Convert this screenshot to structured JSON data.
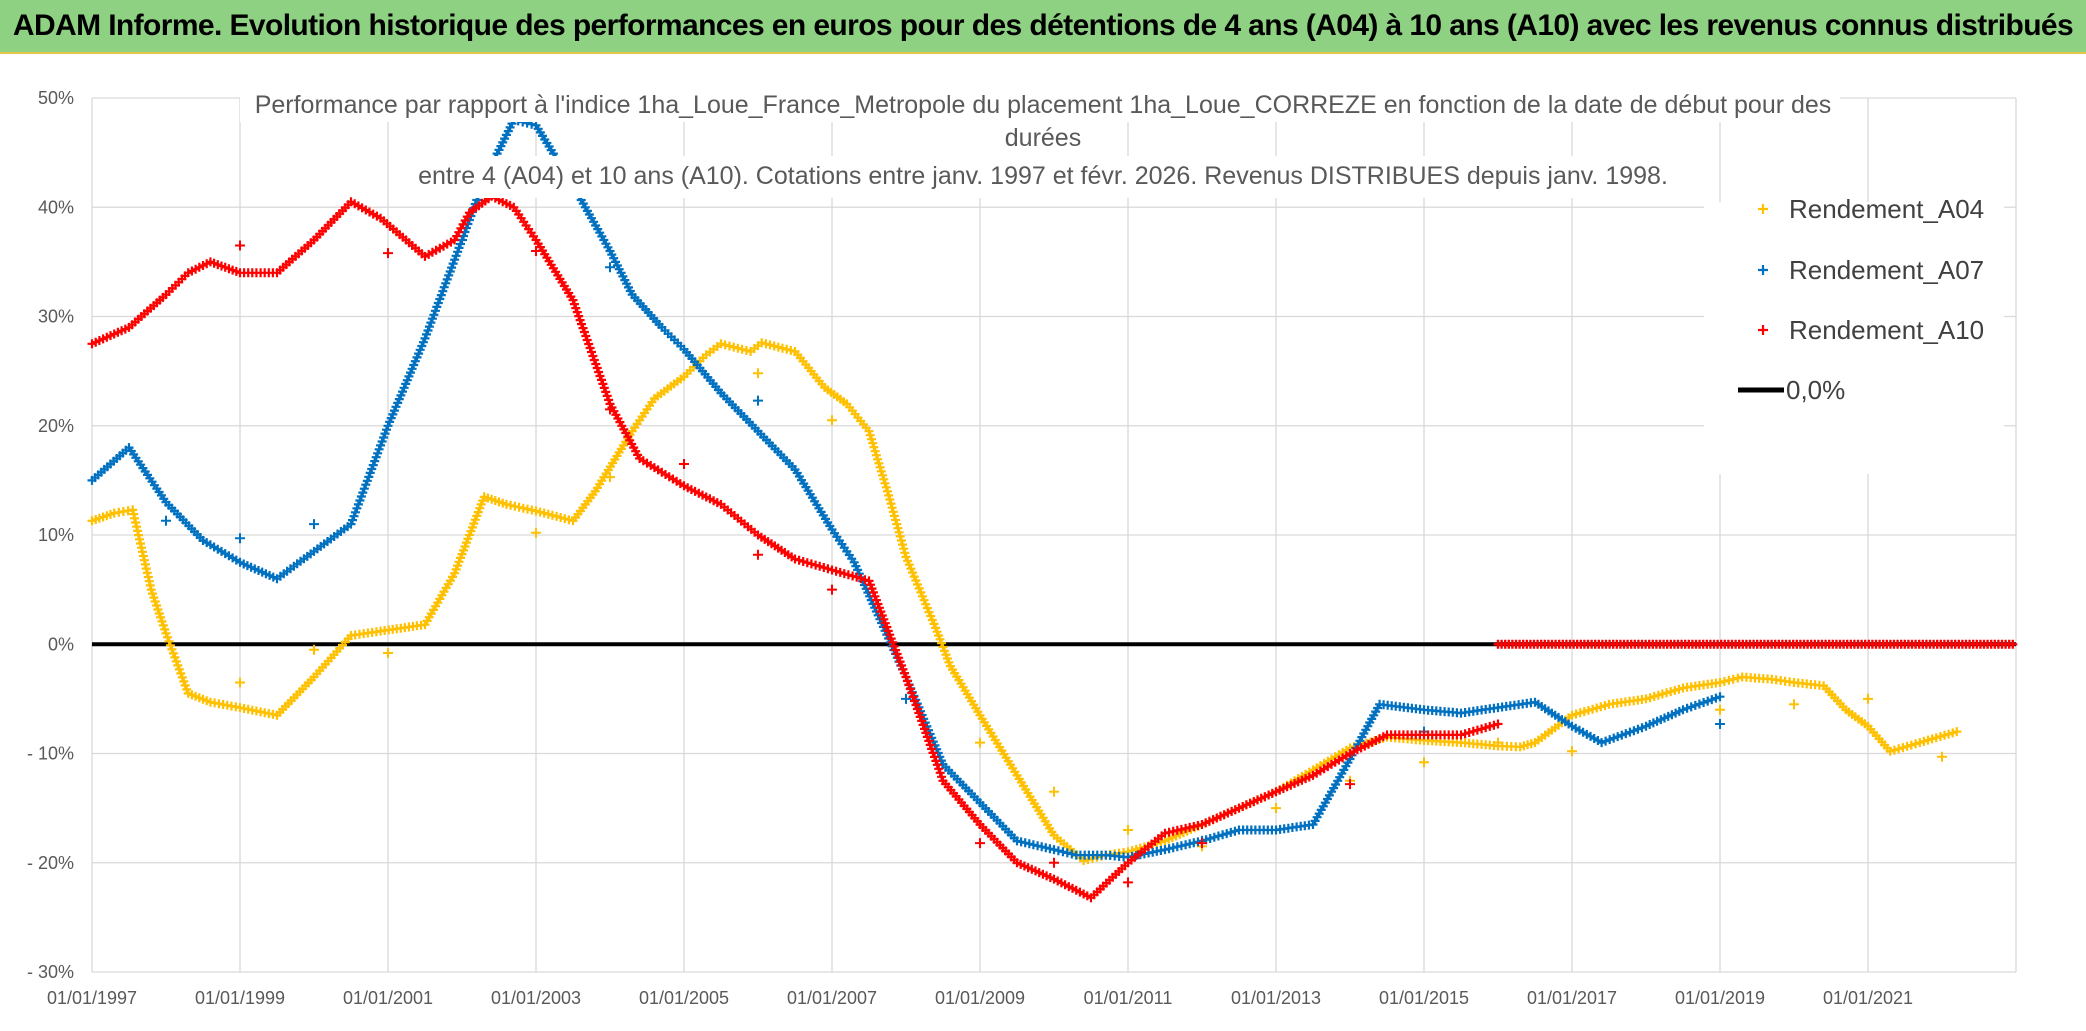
{
  "header": {
    "title": "ADAM Informe. Evolution historique des performances en euros pour des détentions de 4 ans (A04) à 10 ans (A10) avec les revenus connus distribués"
  },
  "chart_data": {
    "type": "scatter",
    "title_lines": [
      "Performance par rapport à l'indice 1ha_Loue_France_Metropole  du placement 1ha_Loue_CORREZE en fonction de la date de début pour des",
      "durées",
      "entre 4 (A04) et 10 ans (A10). Cotations entre janv. 1997 et févr. 2026. Revenus DISTRIBUES depuis janv. 1998."
    ],
    "x_range": [
      1997.0,
      2023.0
    ],
    "ylim": [
      -30,
      50
    ],
    "x_tick_labels": [
      "01/01/1997",
      "01/01/1999",
      "01/01/2001",
      "01/01/2003",
      "01/01/2005",
      "01/01/2007",
      "01/01/2009",
      "01/01/2011",
      "01/01/2013",
      "01/01/2015",
      "01/01/2017",
      "01/01/2019",
      "01/01/2021"
    ],
    "x_tick_values": [
      1997,
      1999,
      2001,
      2003,
      2005,
      2007,
      2009,
      2011,
      2013,
      2015,
      2017,
      2019,
      2021
    ],
    "y_tick_values": [
      50,
      40,
      30,
      20,
      10,
      0,
      -10,
      -20,
      -30
    ],
    "y_tick_labels": [
      "50%",
      "40%",
      "30%",
      "20%",
      "10%",
      "0%",
      "- 10%",
      "- 20%",
      "- 30%"
    ],
    "series": [
      {
        "name": "Rendement_A04",
        "color": "#ffc000",
        "points": [
          [
            1997.0,
            11.3
          ],
          [
            1997.3,
            12.0
          ],
          [
            1997.55,
            12.3
          ],
          [
            1997.8,
            5.0
          ],
          [
            1998.0,
            1.0
          ],
          [
            1998.3,
            -4.5
          ],
          [
            1998.6,
            -5.3
          ],
          [
            1999.0,
            -5.8
          ],
          [
            1999.5,
            -6.5
          ],
          [
            2000.0,
            -3.0
          ],
          [
            2000.5,
            0.8
          ],
          [
            2000.9,
            1.2
          ],
          [
            2001.5,
            1.8
          ],
          [
            2001.9,
            6.5
          ],
          [
            2002.3,
            13.5
          ],
          [
            2002.6,
            12.8
          ],
          [
            2003.0,
            12.2
          ],
          [
            2003.5,
            11.3
          ],
          [
            2003.8,
            14.0
          ],
          [
            2004.3,
            19.5
          ],
          [
            2004.6,
            22.5
          ],
          [
            2005.0,
            24.5
          ],
          [
            2005.3,
            26.5
          ],
          [
            2005.5,
            27.5
          ],
          [
            2005.9,
            26.8
          ],
          [
            2006.05,
            27.6
          ],
          [
            2006.5,
            26.8
          ],
          [
            2006.9,
            23.5
          ],
          [
            2007.2,
            22.0
          ],
          [
            2007.5,
            19.5
          ],
          [
            2007.75,
            14.0
          ],
          [
            2008.0,
            8.0
          ],
          [
            2008.4,
            1.5
          ],
          [
            2008.6,
            -2.0
          ],
          [
            2009.0,
            -6.5
          ],
          [
            2009.5,
            -12.0
          ],
          [
            2010.0,
            -17.5
          ],
          [
            2010.4,
            -19.8
          ],
          [
            2010.7,
            -19.3
          ],
          [
            2011.0,
            -19.0
          ],
          [
            2011.5,
            -18.0
          ],
          [
            2012.0,
            -16.5
          ],
          [
            2012.5,
            -15.0
          ],
          [
            2013.0,
            -13.5
          ],
          [
            2013.5,
            -11.5
          ],
          [
            2014.0,
            -9.5
          ],
          [
            2014.5,
            -8.5
          ],
          [
            2015.0,
            -8.8
          ],
          [
            2015.5,
            -9.0
          ],
          [
            2016.0,
            -9.3
          ],
          [
            2016.3,
            -9.4
          ],
          [
            2016.5,
            -9.0
          ],
          [
            2017.0,
            -6.5
          ],
          [
            2017.5,
            -5.5
          ],
          [
            2018.0,
            -5.0
          ],
          [
            2018.5,
            -4.0
          ],
          [
            2019.0,
            -3.5
          ],
          [
            2019.3,
            -3.0
          ],
          [
            2019.7,
            -3.2
          ],
          [
            2020.0,
            -3.5
          ],
          [
            2020.4,
            -3.8
          ],
          [
            2020.7,
            -6.0
          ],
          [
            2021.0,
            -7.5
          ],
          [
            2021.3,
            -9.8
          ],
          [
            2021.7,
            -9.0
          ],
          [
            2022.2,
            -8.0
          ]
        ],
        "outliers": [
          [
            1999.0,
            -3.5
          ],
          [
            2000.0,
            -0.5
          ],
          [
            2001.0,
            -0.8
          ],
          [
            2003.0,
            10.2
          ],
          [
            2004.0,
            15.3
          ],
          [
            2006.0,
            24.8
          ],
          [
            2007.0,
            20.5
          ],
          [
            2009.0,
            -9.0
          ],
          [
            2010.0,
            -13.5
          ],
          [
            2011.0,
            -17.0
          ],
          [
            2012.0,
            -18.5
          ],
          [
            2013.0,
            -15.0
          ],
          [
            2014.0,
            -12.5
          ],
          [
            2015.0,
            -10.8
          ],
          [
            2016.0,
            -9.0
          ],
          [
            2017.0,
            -9.8
          ],
          [
            2019.0,
            -6.0
          ],
          [
            2020.0,
            -5.5
          ],
          [
            2021.0,
            -5.0
          ],
          [
            2022.0,
            -10.3
          ]
        ]
      },
      {
        "name": "Rendement_A07",
        "color": "#0070c0",
        "points": [
          [
            1997.0,
            15.0
          ],
          [
            1997.5,
            18.0
          ],
          [
            1998.0,
            13.0
          ],
          [
            1998.5,
            9.5
          ],
          [
            1999.0,
            7.5
          ],
          [
            1999.5,
            6.0
          ],
          [
            2000.0,
            8.5
          ],
          [
            2000.5,
            11.0
          ],
          [
            2001.0,
            20.0
          ],
          [
            2001.5,
            28.0
          ],
          [
            2002.0,
            37.0
          ],
          [
            2002.3,
            42.5
          ],
          [
            2002.7,
            48.0
          ],
          [
            2003.0,
            47.5
          ],
          [
            2003.5,
            42.0
          ],
          [
            2004.0,
            36.0
          ],
          [
            2004.3,
            32.0
          ],
          [
            2004.7,
            29.0
          ],
          [
            2005.0,
            27.0
          ],
          [
            2005.5,
            23.0
          ],
          [
            2006.0,
            19.5
          ],
          [
            2006.5,
            16.0
          ],
          [
            2007.0,
            10.5
          ],
          [
            2007.3,
            7.5
          ],
          [
            2007.6,
            3.0
          ],
          [
            2008.0,
            -3.0
          ],
          [
            2008.5,
            -11.0
          ],
          [
            2009.0,
            -14.5
          ],
          [
            2009.5,
            -18.0
          ],
          [
            2010.0,
            -18.8
          ],
          [
            2010.3,
            -19.3
          ],
          [
            2010.7,
            -19.3
          ],
          [
            2011.0,
            -19.5
          ],
          [
            2011.5,
            -18.8
          ],
          [
            2012.0,
            -18.0
          ],
          [
            2012.5,
            -17.0
          ],
          [
            2013.0,
            -17.0
          ],
          [
            2013.5,
            -16.5
          ],
          [
            2014.0,
            -10.5
          ],
          [
            2014.4,
            -5.5
          ],
          [
            2015.0,
            -6.0
          ],
          [
            2015.5,
            -6.3
          ],
          [
            2016.0,
            -5.8
          ],
          [
            2016.5,
            -5.3
          ],
          [
            2017.0,
            -7.5
          ],
          [
            2017.4,
            -9.0
          ],
          [
            2018.0,
            -7.5
          ],
          [
            2018.5,
            -6.0
          ],
          [
            2019.0,
            -4.8
          ]
        ],
        "outliers": [
          [
            1998.0,
            11.3
          ],
          [
            1999.0,
            9.7
          ],
          [
            2000.0,
            11.0
          ],
          [
            2002.0,
            37.0
          ],
          [
            2004.0,
            34.5
          ],
          [
            2006.0,
            22.3
          ],
          [
            2008.0,
            -5.0
          ],
          [
            2012.0,
            -18.0
          ],
          [
            2015.0,
            -8.0
          ],
          [
            2019.0,
            -7.3
          ]
        ]
      },
      {
        "name": "Rendement_A10",
        "color": "#ff0000",
        "points": [
          [
            1997.0,
            27.5
          ],
          [
            1997.5,
            29.0
          ],
          [
            1998.0,
            32.0
          ],
          [
            1998.3,
            34.0
          ],
          [
            1998.6,
            35.0
          ],
          [
            1999.0,
            34.0
          ],
          [
            1999.5,
            34.0
          ],
          [
            2000.0,
            37.0
          ],
          [
            2000.5,
            40.5
          ],
          [
            2000.9,
            39.0
          ],
          [
            2001.5,
            35.5
          ],
          [
            2001.9,
            37.0
          ],
          [
            2002.1,
            39.5
          ],
          [
            2002.4,
            41.0
          ],
          [
            2002.7,
            40.0
          ],
          [
            2003.0,
            37.0
          ],
          [
            2003.5,
            31.5
          ],
          [
            2004.0,
            22.0
          ],
          [
            2004.4,
            17.0
          ],
          [
            2005.0,
            14.5
          ],
          [
            2005.5,
            12.8
          ],
          [
            2006.0,
            10.0
          ],
          [
            2006.5,
            7.8
          ],
          [
            2007.0,
            6.8
          ],
          [
            2007.5,
            5.8
          ],
          [
            2008.0,
            -3.0
          ],
          [
            2008.5,
            -12.5
          ],
          [
            2009.0,
            -16.5
          ],
          [
            2009.5,
            -20.0
          ],
          [
            2010.0,
            -21.5
          ],
          [
            2010.5,
            -23.2
          ],
          [
            2011.0,
            -20.0
          ],
          [
            2011.5,
            -17.3
          ],
          [
            2012.0,
            -16.5
          ],
          [
            2012.5,
            -15.0
          ],
          [
            2013.0,
            -13.5
          ],
          [
            2013.5,
            -12.0
          ],
          [
            2014.0,
            -10.0
          ],
          [
            2014.5,
            -8.3
          ],
          [
            2015.0,
            -8.3
          ],
          [
            2015.5,
            -8.3
          ],
          [
            2016.0,
            -7.3
          ]
        ],
        "outliers": [
          [
            1999.0,
            36.5
          ],
          [
            2001.0,
            35.8
          ],
          [
            2003.0,
            36.0
          ],
          [
            2004.0,
            21.5
          ],
          [
            2005.0,
            16.5
          ],
          [
            2006.0,
            8.2
          ],
          [
            2007.0,
            5.0
          ],
          [
            2009.0,
            -18.2
          ],
          [
            2010.0,
            -20.0
          ],
          [
            2011.0,
            -21.8
          ],
          [
            2012.0,
            -18.2
          ],
          [
            2014.0,
            -12.8
          ]
        ]
      },
      {
        "name": "0,0%",
        "color": "#000000",
        "y": 0
      }
    ],
    "a10_zero_segment": [
      2016.0,
      2023.0
    ]
  }
}
